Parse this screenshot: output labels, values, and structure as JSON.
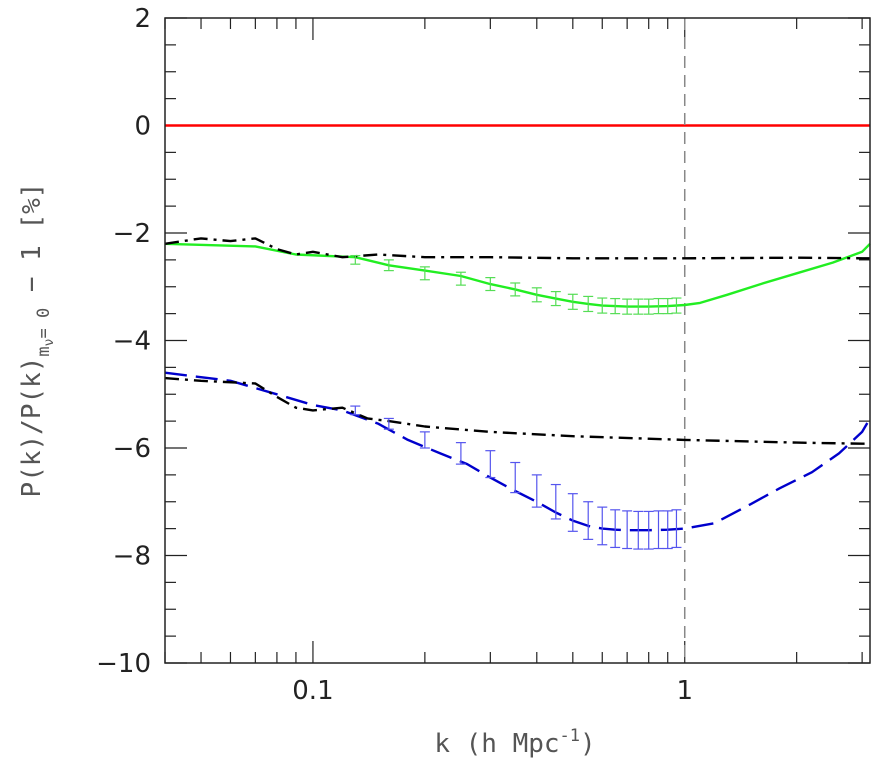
{
  "chart_data": {
    "type": "line",
    "xlabel": "k (h Mpc",
    "xlabel_sup": "-1",
    "xlabel_end": ")",
    "ylabel_main": "P(k)/P(k)",
    "ylabel_sub": "m",
    "ylabel_sub_nu": "ν",
    "ylabel_sub_eq": "= 0",
    "ylabel_tail": " −  1  [%]",
    "x_scale": "log",
    "xlim": [
      0.04,
      3.15
    ],
    "ylim": [
      -10,
      2
    ],
    "x_tick_labels": [
      {
        "value": 0.1,
        "label": "0.1"
      },
      {
        "value": 1,
        "label": "1"
      }
    ],
    "y_tick_labels": [
      {
        "value": 2,
        "label": "2"
      },
      {
        "value": 0,
        "label": "0"
      },
      {
        "value": -2,
        "label": "−2"
      },
      {
        "value": -4,
        "label": "−4"
      },
      {
        "value": -6,
        "label": "−6"
      },
      {
        "value": -8,
        "label": "−8"
      },
      {
        "value": -10,
        "label": "−10"
      }
    ],
    "reference_line": {
      "y": 0,
      "color": "#ff0000"
    },
    "vertical_marker": {
      "x": 1,
      "style": "dashed",
      "color": "#888888"
    },
    "series": [
      {
        "style": "solid",
        "color": "#22ee22",
        "x": [
          0.04,
          0.07,
          0.09,
          0.13,
          0.16,
          0.2,
          0.25,
          0.3,
          0.35,
          0.4,
          0.45,
          0.5,
          0.55,
          0.6,
          0.65,
          0.7,
          0.8,
          0.9,
          1.0,
          1.1,
          1.3,
          1.6,
          2.0,
          2.5,
          3.0,
          3.15
        ],
        "y": [
          -2.2,
          -2.25,
          -2.4,
          -2.45,
          -2.6,
          -2.7,
          -2.8,
          -2.95,
          -3.05,
          -3.15,
          -3.22,
          -3.28,
          -3.32,
          -3.35,
          -3.36,
          -3.37,
          -3.37,
          -3.36,
          -3.34,
          -3.3,
          -3.15,
          -2.95,
          -2.75,
          -2.55,
          -2.35,
          -2.2
        ]
      },
      {
        "style": "dashdot",
        "color": "#000000",
        "x": [
          0.04,
          0.05,
          0.06,
          0.07,
          0.08,
          0.09,
          0.1,
          0.12,
          0.15,
          0.2,
          0.3,
          0.5,
          1.0,
          2.0,
          3.0,
          3.15
        ],
        "y": [
          -2.2,
          -2.1,
          -2.15,
          -2.1,
          -2.3,
          -2.4,
          -2.35,
          -2.45,
          -2.4,
          -2.45,
          -2.45,
          -2.47,
          -2.47,
          -2.46,
          -2.47,
          -2.47
        ]
      },
      {
        "style": "dashed",
        "color": "#0000cc",
        "x": [
          0.04,
          0.06,
          0.08,
          0.1,
          0.12,
          0.15,
          0.18,
          0.22,
          0.26,
          0.3,
          0.35,
          0.4,
          0.45,
          0.5,
          0.55,
          0.6,
          0.65,
          0.7,
          0.8,
          0.9,
          1.0,
          1.2,
          1.5,
          1.8,
          2.2,
          2.6,
          3.0,
          3.15
        ],
        "y": [
          -4.6,
          -4.75,
          -5.0,
          -5.2,
          -5.3,
          -5.55,
          -5.85,
          -6.1,
          -6.3,
          -6.55,
          -6.8,
          -7.0,
          -7.2,
          -7.35,
          -7.45,
          -7.5,
          -7.52,
          -7.53,
          -7.53,
          -7.52,
          -7.5,
          -7.4,
          -7.05,
          -6.75,
          -6.45,
          -6.1,
          -5.7,
          -5.45
        ]
      },
      {
        "style": "dashdot",
        "color": "#000000",
        "x": [
          0.04,
          0.05,
          0.07,
          0.08,
          0.09,
          0.1,
          0.12,
          0.14,
          0.16,
          0.2,
          0.3,
          0.5,
          1.0,
          2.0,
          3.0,
          3.15
        ],
        "y": [
          -4.7,
          -4.75,
          -4.8,
          -5.05,
          -5.25,
          -5.3,
          -5.25,
          -5.45,
          -5.5,
          -5.6,
          -5.7,
          -5.78,
          -5.85,
          -5.9,
          -5.92,
          -5.92
        ]
      }
    ],
    "error_bars": [
      {
        "color": "#55dd55",
        "x": [
          0.13,
          0.16,
          0.2,
          0.25,
          0.3,
          0.35,
          0.4,
          0.45,
          0.5,
          0.55,
          0.6,
          0.65,
          0.7,
          0.75,
          0.8,
          0.85,
          0.9,
          0.95
        ],
        "y": [
          -2.5,
          -2.6,
          -2.75,
          -2.85,
          -2.95,
          -3.05,
          -3.15,
          -3.22,
          -3.28,
          -3.32,
          -3.35,
          -3.36,
          -3.37,
          -3.37,
          -3.37,
          -3.36,
          -3.36,
          -3.35
        ],
        "err": [
          0.08,
          0.1,
          0.12,
          0.12,
          0.12,
          0.12,
          0.13,
          0.13,
          0.14,
          0.14,
          0.14,
          0.14,
          0.14,
          0.14,
          0.14,
          0.14,
          0.14,
          0.14
        ]
      },
      {
        "color": "#5555ee",
        "x": [
          0.13,
          0.16,
          0.2,
          0.25,
          0.3,
          0.35,
          0.4,
          0.45,
          0.5,
          0.55,
          0.6,
          0.65,
          0.7,
          0.75,
          0.8,
          0.85,
          0.9,
          0.95
        ],
        "y": [
          -5.3,
          -5.55,
          -5.85,
          -6.1,
          -6.3,
          -6.55,
          -6.8,
          -7.0,
          -7.2,
          -7.35,
          -7.45,
          -7.5,
          -7.52,
          -7.53,
          -7.53,
          -7.52,
          -7.52,
          -7.5
        ],
        "err": [
          0.08,
          0.1,
          0.15,
          0.2,
          0.25,
          0.28,
          0.3,
          0.32,
          0.35,
          0.35,
          0.35,
          0.35,
          0.35,
          0.35,
          0.35,
          0.35,
          0.35,
          0.35
        ]
      }
    ]
  }
}
